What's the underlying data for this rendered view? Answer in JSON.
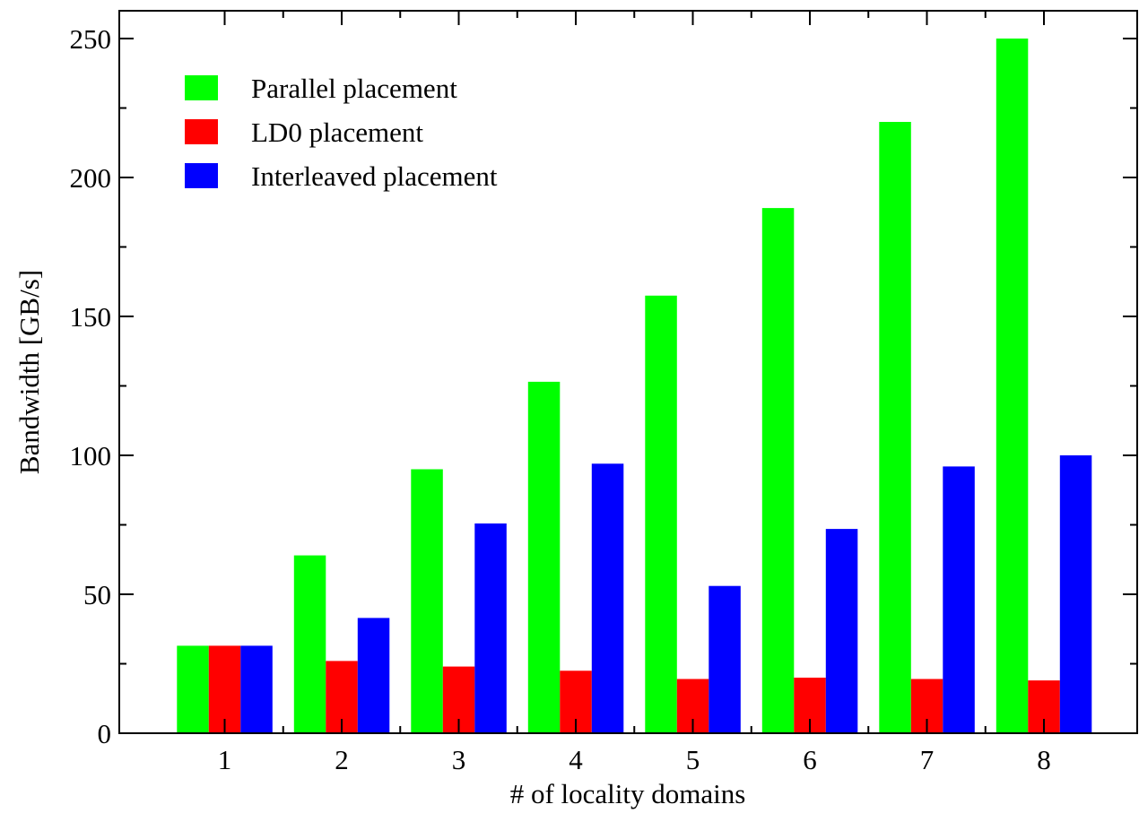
{
  "chart_data": {
    "type": "bar",
    "title": "",
    "xlabel": "# of locality domains",
    "ylabel": "Bandwidth [GB/s]",
    "categories": [
      "1",
      "2",
      "3",
      "4",
      "5",
      "6",
      "7",
      "8"
    ],
    "ylim": [
      0,
      260
    ],
    "yticks": [
      0,
      50,
      100,
      150,
      200,
      250
    ],
    "y_minor_step": 25,
    "grid": false,
    "legend_position": "top-left",
    "series": [
      {
        "name": "Parallel placement",
        "color": "#00ff00",
        "values": [
          31.5,
          64,
          95,
          126.5,
          157.5,
          189,
          220,
          250
        ]
      },
      {
        "name": "LD0 placement",
        "color": "#ff0000",
        "values": [
          31.5,
          26,
          24,
          22.5,
          19.5,
          20,
          19.5,
          19
        ]
      },
      {
        "name": "Interleaved placement",
        "color": "#0000ff",
        "values": [
          31.5,
          41.5,
          75.5,
          97,
          53,
          73.5,
          96,
          100
        ]
      }
    ]
  }
}
